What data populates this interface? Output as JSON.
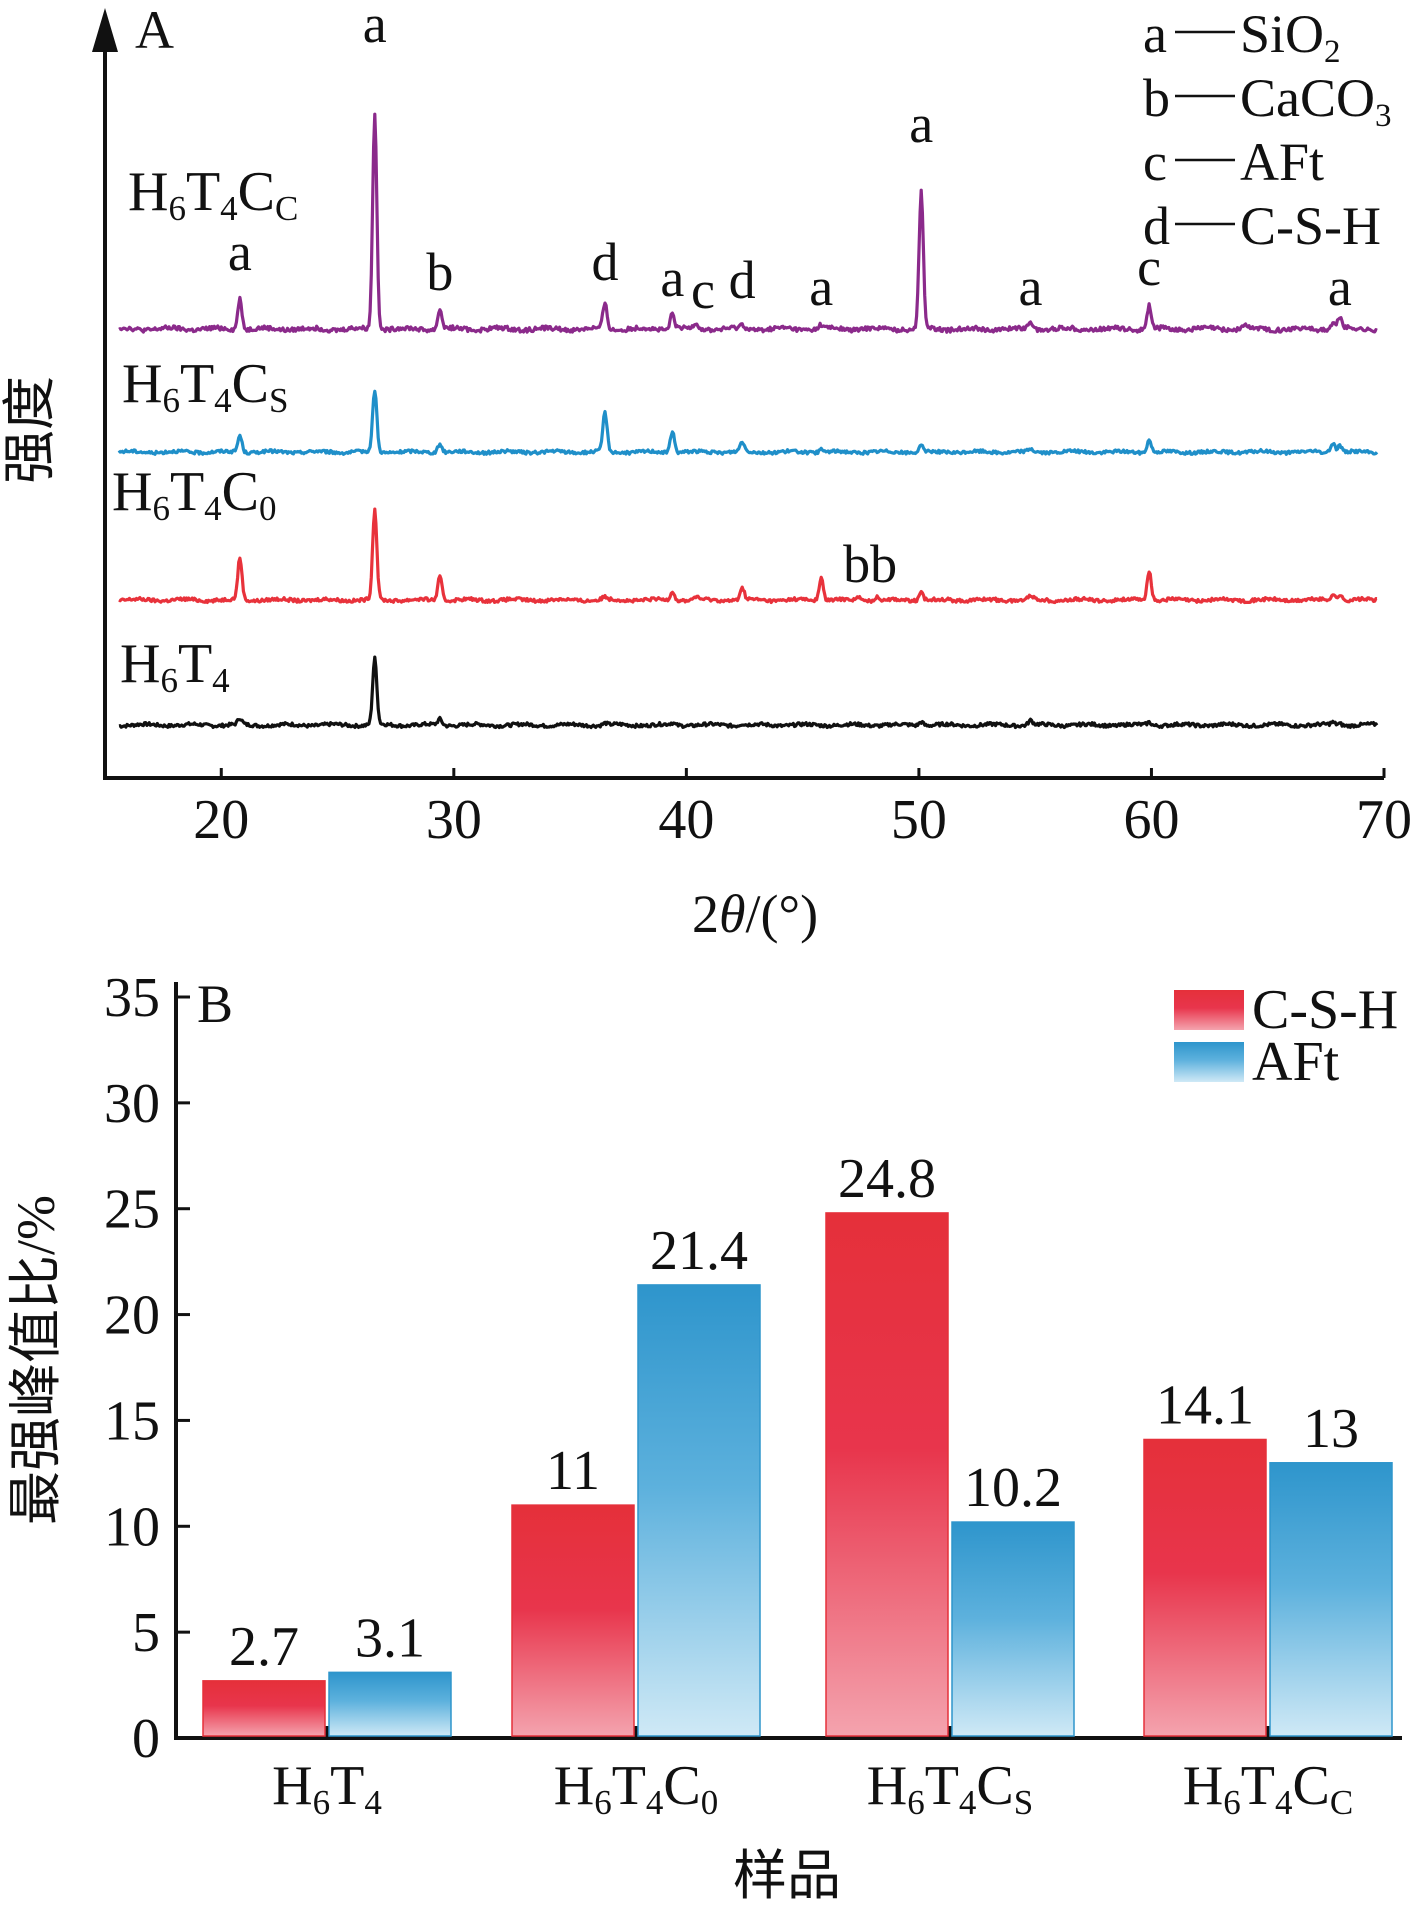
{
  "chart_data": [
    {
      "panel": "A",
      "type": "line",
      "xlabel": "2θ/(°)",
      "ylabel": "强度",
      "xlim": [
        15,
        70
      ],
      "xticks": [
        20,
        30,
        40,
        50,
        60,
        70
      ],
      "legend": {
        "placement": "top-right",
        "entries": [
          {
            "key": "a",
            "name": "SiO",
            "sub": "2"
          },
          {
            "key": "b",
            "name": "CaCO",
            "sub": "3"
          },
          {
            "key": "c",
            "name": "AFt",
            "sub": ""
          },
          {
            "key": "d",
            "name": "C-S-H",
            "sub": ""
          }
        ]
      },
      "series": [
        {
          "name": "H6T4",
          "parts": [
            [
              "H",
              ""
            ],
            [
              "6",
              "sub"
            ],
            [
              "T",
              ""
            ],
            [
              "4",
              "sub"
            ]
          ],
          "color": "#111111",
          "peaks": [
            [
              20.8,
              2
            ],
            [
              26.6,
              22
            ],
            [
              29.4,
              2
            ],
            [
              36.5,
              0.6
            ],
            [
              39.4,
              0.6
            ],
            [
              42.4,
              0.5
            ],
            [
              50.1,
              1.3
            ],
            [
              54.8,
              1.5
            ],
            [
              59.9,
              1
            ],
            [
              67.8,
              0.8
            ],
            [
              68.1,
              0.6
            ]
          ]
        },
        {
          "name": "H6T4C0",
          "parts": [
            [
              "H",
              ""
            ],
            [
              "6",
              "sub"
            ],
            [
              "T",
              ""
            ],
            [
              "4",
              "sub"
            ],
            [
              "C",
              ""
            ],
            [
              "0",
              "sub"
            ]
          ],
          "color": "#e8323b",
          "peaks": [
            [
              20.8,
              14
            ],
            [
              26.6,
              30
            ],
            [
              29.4,
              8
            ],
            [
              36.5,
              1
            ],
            [
              39.4,
              3
            ],
            [
              40.4,
              1
            ],
            [
              42.4,
              4
            ],
            [
              45.8,
              7.5
            ],
            [
              47.4,
              1
            ],
            [
              48.2,
              1
            ],
            [
              50.1,
              2.5
            ],
            [
              54.8,
              1.5
            ],
            [
              59.9,
              10
            ],
            [
              67.8,
              2
            ],
            [
              68.1,
              2
            ]
          ]
        },
        {
          "name": "H6T4CS",
          "parts": [
            [
              "H",
              ""
            ],
            [
              "6",
              "sub"
            ],
            [
              "T",
              ""
            ],
            [
              "4",
              "sub"
            ],
            [
              "C",
              ""
            ],
            [
              "S",
              "sub"
            ]
          ],
          "color": "#1f8fc9",
          "peaks": [
            [
              20.8,
              6
            ],
            [
              26.6,
              22
            ],
            [
              29.4,
              3
            ],
            [
              36.5,
              14
            ],
            [
              39.4,
              7.5
            ],
            [
              42.4,
              3.5
            ],
            [
              45.8,
              1
            ],
            [
              50.1,
              2
            ],
            [
              54.8,
              1
            ],
            [
              59.9,
              4.5
            ],
            [
              67.8,
              3.5
            ],
            [
              68.1,
              2.5
            ]
          ]
        },
        {
          "name": "H6T4CC",
          "parts": [
            [
              "H",
              ""
            ],
            [
              "6",
              "sub"
            ],
            [
              "T",
              ""
            ],
            [
              "4",
              "sub"
            ],
            [
              "C",
              ""
            ],
            [
              "C",
              "sub"
            ]
          ],
          "color": "#8b2a8b",
          "peaks": [
            [
              20.8,
              8
            ],
            [
              26.6,
              55
            ],
            [
              29.4,
              5
            ],
            [
              36.5,
              6.5
            ],
            [
              39.4,
              4
            ],
            [
              40.4,
              1.5
            ],
            [
              42.4,
              1
            ],
            [
              45.8,
              1
            ],
            [
              50.1,
              35
            ],
            [
              54.8,
              2
            ],
            [
              59.9,
              6
            ],
            [
              64.0,
              1
            ],
            [
              67.8,
              1.5
            ],
            [
              68.1,
              3
            ]
          ]
        }
      ],
      "peak_labels": [
        {
          "text": "a",
          "x": 20.8,
          "series": "H6T4CC"
        },
        {
          "text": "a",
          "x": 26.6,
          "series": "H6T4CC"
        },
        {
          "text": "b",
          "x": 29.4,
          "series": "H6T4CC"
        },
        {
          "text": "d",
          "x": 36.5,
          "series": "H6T4CC"
        },
        {
          "text": "a",
          "x": 39.4,
          "series": "H6T4CC"
        },
        {
          "text": "c",
          "x": 40.4,
          "series": "H6T4CC"
        },
        {
          "text": "d",
          "x": 42.4,
          "series": "H6T4CC"
        },
        {
          "text": "a",
          "x": 45.8,
          "series": "H6T4CC"
        },
        {
          "text": "a",
          "x": 50.1,
          "series": "H6T4CC"
        },
        {
          "text": "a",
          "x": 54.8,
          "series": "H6T4CC"
        },
        {
          "text": "c",
          "x": 59.9,
          "series": "H6T4CC"
        },
        {
          "text": "a",
          "x": 68.1,
          "series": "H6T4CC"
        },
        {
          "text": "bb",
          "x": 47.9,
          "series": "H6T4C0"
        }
      ]
    },
    {
      "panel": "B",
      "type": "bar",
      "xlabel": "样品",
      "ylabel": "最强峰值比/%",
      "ylim": [
        0,
        35
      ],
      "yticks": [
        0,
        5,
        10,
        15,
        20,
        25,
        30,
        35
      ],
      "categories": [
        [
          [
            "H",
            ""
          ],
          [
            "6",
            "sub"
          ],
          [
            "T",
            ""
          ],
          [
            "4",
            "sub"
          ]
        ],
        [
          [
            "H",
            ""
          ],
          [
            "6",
            "sub"
          ],
          [
            "T",
            ""
          ],
          [
            "4",
            "sub"
          ],
          [
            "C",
            ""
          ],
          [
            "0",
            "sub"
          ]
        ],
        [
          [
            "H",
            ""
          ],
          [
            "6",
            "sub"
          ],
          [
            "T",
            ""
          ],
          [
            "4",
            "sub"
          ],
          [
            "C",
            ""
          ],
          [
            "S",
            "sub"
          ]
        ],
        [
          [
            "H",
            ""
          ],
          [
            "6",
            "sub"
          ],
          [
            "T",
            ""
          ],
          [
            "4",
            "sub"
          ],
          [
            "C",
            ""
          ],
          [
            "C",
            "sub"
          ]
        ]
      ],
      "legend": {
        "placement": "top-right"
      },
      "series": [
        {
          "name": "C-S-H",
          "color": "#e5303a",
          "values": [
            2.7,
            11,
            24.8,
            14.1
          ],
          "labels": [
            "2.7",
            "11",
            "24.8",
            "14.1"
          ]
        },
        {
          "name": "AFt",
          "color": "#2e95cc",
          "values": [
            3.1,
            21.4,
            10.2,
            13
          ],
          "labels": [
            "3.1",
            "21.4",
            "10.2",
            "13"
          ]
        }
      ]
    }
  ]
}
